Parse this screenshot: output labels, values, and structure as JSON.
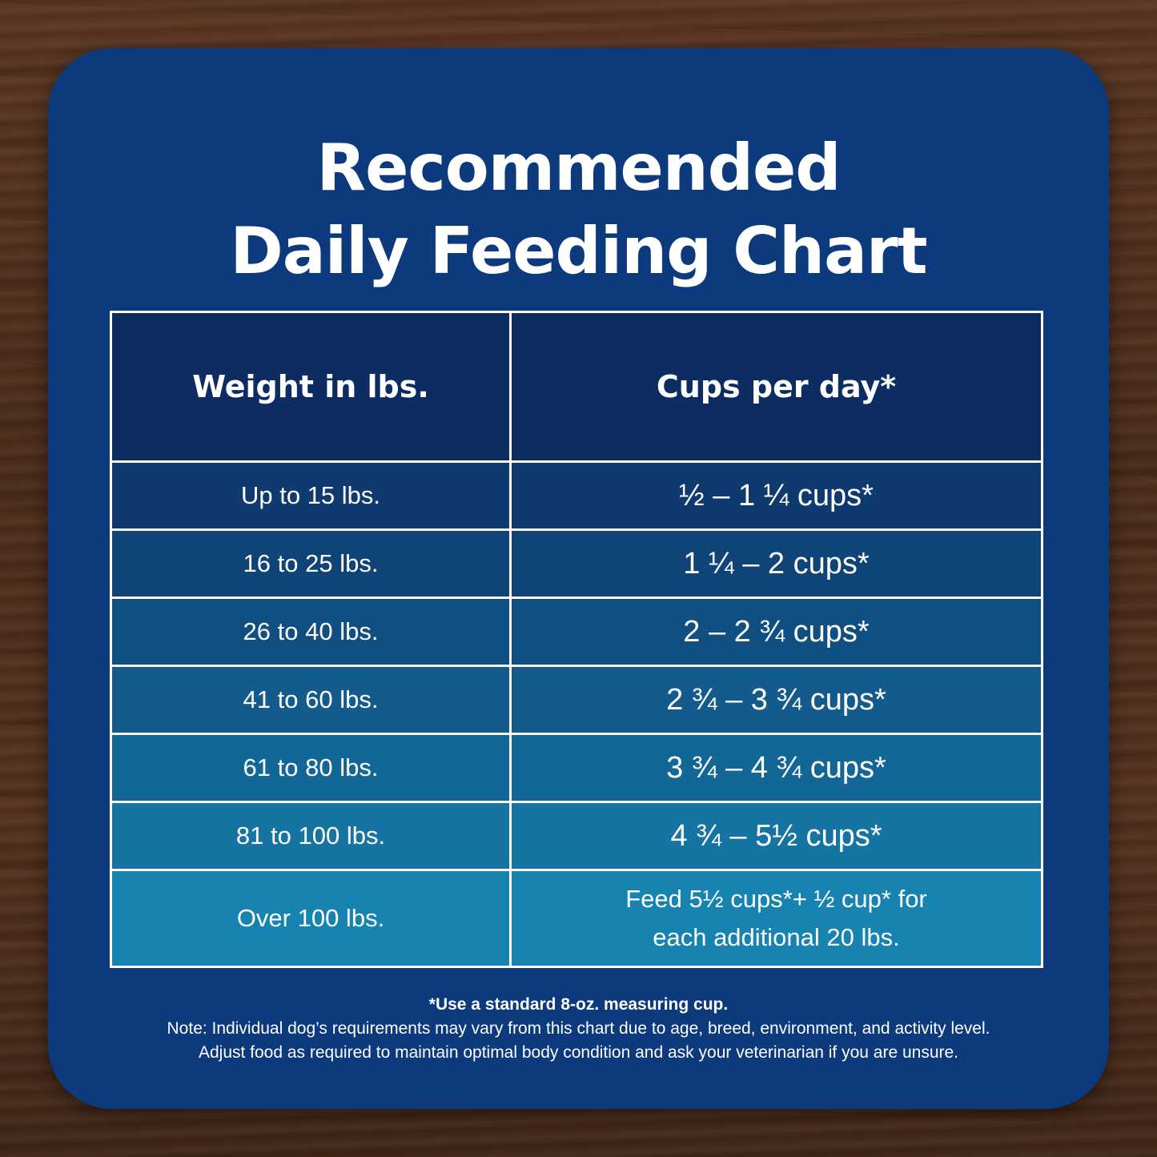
{
  "title": {
    "line1": "Recommended",
    "line2": "Daily Feeding Chart"
  },
  "table": {
    "headers": [
      "Weight in lbs.",
      "Cups per day*"
    ],
    "rows": [
      {
        "weight": "Up to 15 lbs.",
        "cups": "½ – 1 ¼ cups*",
        "bg": "#0e3a70"
      },
      {
        "weight": "16 to 25 lbs.",
        "cups": "1 ¼ –  2 cups*",
        "bg": "#0f4478"
      },
      {
        "weight": "26 to 40 lbs.",
        "cups": "2 – 2 ¾ cups*",
        "bg": "#104f82"
      },
      {
        "weight": "41 to 60 lbs.",
        "cups": "2 ¾ – 3 ¾ cups*",
        "bg": "#125b8c"
      },
      {
        "weight": "61 to 80 lbs.",
        "cups": "3 ¾ – 4 ¾ cups*",
        "bg": "#136796"
      },
      {
        "weight": "81 to 100 lbs.",
        "cups": "4 ¾ – 5½ cups*",
        "bg": "#1574a1"
      },
      {
        "weight": "Over 100 lbs.",
        "cups_line1": "Feed 5½ cups*+ ½ cup* for",
        "cups_line2": "each additional 20 lbs.",
        "bg": "#1783b0"
      }
    ]
  },
  "footer": {
    "footnote": "*Use a standard 8-oz. measuring cup.",
    "note_line1": "Note: Individual dog’s requirements may vary from this chart due to age, breed, environment, and activity level.",
    "note_line2": "Adjust food as required to maintain optimal body condition and ask your veterinarian if you are unsure."
  },
  "colors": {
    "card": "#0c3a7d",
    "header": "#0d2c61",
    "text": "#ffffff"
  }
}
